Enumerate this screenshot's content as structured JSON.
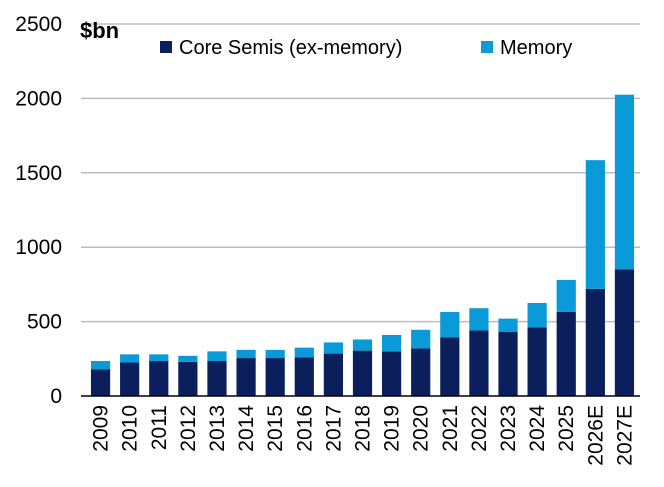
{
  "chart_data": {
    "type": "bar",
    "stacked": true,
    "ylabel": "$bn",
    "xlabel": "",
    "ylim": [
      0,
      2500
    ],
    "yticks": [
      0,
      500,
      1000,
      1500,
      2000,
      2500
    ],
    "grid": "horizontal",
    "legend_position": "top",
    "categories": [
      "2009",
      "2010",
      "2011",
      "2012",
      "2013",
      "2014",
      "2015",
      "2016",
      "2017",
      "2018",
      "2019",
      "2020",
      "2021",
      "2022",
      "2023",
      "2024",
      "2025",
      "2026E",
      "2027E"
    ],
    "series": [
      {
        "name": "Core Semis (ex-memory)",
        "color": "#0a1f5c",
        "values": [
          180,
          225,
          235,
          230,
          235,
          255,
          255,
          260,
          285,
          305,
          300,
          320,
          395,
          440,
          430,
          460,
          565,
          720,
          850
        ]
      },
      {
        "name": "Memory",
        "color": "#0a9ad8",
        "values": [
          55,
          55,
          45,
          40,
          65,
          55,
          55,
          65,
          75,
          75,
          110,
          125,
          170,
          150,
          90,
          165,
          215,
          865,
          1175
        ]
      }
    ]
  }
}
